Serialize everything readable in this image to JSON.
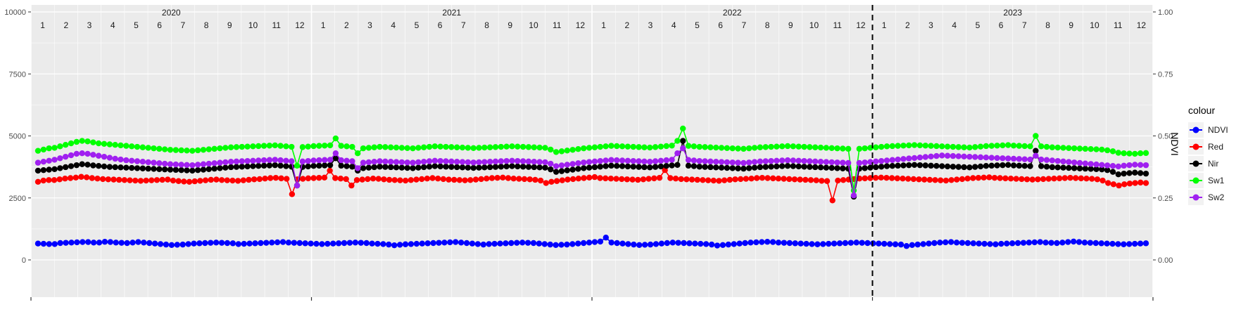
{
  "chart_data": {
    "type": "line",
    "title": "",
    "xlabel": "",
    "ylabel_left": "",
    "ylabel_right": "NDVI",
    "ylim_left": [
      0,
      10000
    ],
    "ylim_right": [
      0.0,
      1.0
    ],
    "yticks_left": [
      "0",
      "2500",
      "5000",
      "7500",
      "10000"
    ],
    "yticks_right": [
      "0.00",
      "0.25",
      "0.50",
      "0.75",
      "1.00"
    ],
    "grid": true,
    "legend_position": "right",
    "legend_title": "colour",
    "years": [
      "2020",
      "2021",
      "2022",
      "2023"
    ],
    "months": [
      "1",
      "2",
      "3",
      "4",
      "5",
      "6",
      "7",
      "8",
      "9",
      "10",
      "11",
      "12"
    ],
    "x_start": "2020-01",
    "x_end": "2023-12",
    "vline_at": "2022-12-31",
    "series": [
      {
        "name": "NDVI",
        "color": "#0000ff",
        "values": [
          660,
          650,
          640,
          640,
          680,
          690,
          700,
          710,
          720,
          720,
          700,
          700,
          730,
          720,
          700,
          690,
          680,
          700,
          720,
          700,
          680,
          660,
          640,
          620,
          600,
          610,
          620,
          640,
          660,
          670,
          680,
          690,
          700,
          690,
          680,
          670,
          640,
          650,
          660,
          670,
          680,
          690,
          700,
          710,
          720,
          700,
          690,
          680,
          670,
          660,
          650,
          640,
          650,
          660,
          670,
          680,
          690,
          700,
          690,
          680,
          660,
          650,
          640,
          620,
          590,
          610,
          630,
          640,
          650,
          660,
          670,
          680,
          690,
          700,
          710,
          720,
          700,
          680,
          660,
          640,
          620,
          640,
          650,
          660,
          670,
          680,
          690,
          700,
          690,
          680,
          660,
          640,
          620,
          600,
          610,
          620,
          640,
          660,
          680,
          700,
          720,
          740,
          900,
          700,
          680,
          660,
          640,
          620,
          600,
          610,
          620,
          640,
          660,
          680,
          700,
          690,
          680,
          670,
          660,
          650,
          640,
          620,
          580,
          600,
          620,
          640,
          660,
          680,
          700,
          710,
          720,
          730,
          720,
          700,
          690,
          680,
          670,
          660,
          650,
          640,
          630,
          640,
          650,
          660,
          670,
          680,
          690,
          700,
          690,
          680,
          670,
          660,
          650,
          640,
          630,
          620,
          560,
          600,
          620,
          640,
          660,
          680,
          700,
          710,
          720,
          700,
          690,
          680,
          670,
          660,
          650,
          640,
          630,
          650,
          660,
          670,
          680,
          690,
          700,
          710,
          720,
          700,
          690,
          680,
          700,
          720,
          740,
          720,
          700,
          690,
          680,
          670,
          660,
          650,
          640,
          630,
          640,
          650,
          660,
          670
        ]
      },
      {
        "name": "Red",
        "color": "#ff0000",
        "values": [
          3150,
          3200,
          3220,
          3220,
          3250,
          3280,
          3300,
          3320,
          3350,
          3330,
          3300,
          3280,
          3260,
          3250,
          3240,
          3230,
          3220,
          3210,
          3200,
          3190,
          3200,
          3210,
          3220,
          3230,
          3240,
          3200,
          3180,
          3160,
          3150,
          3170,
          3190,
          3210,
          3230,
          3240,
          3220,
          3210,
          3200,
          3190,
          3210,
          3230,
          3250,
          3260,
          3280,
          3300,
          3310,
          3290,
          3270,
          2650,
          3250,
          3270,
          3290,
          3300,
          3310,
          3320,
          3600,
          3300,
          3280,
          3260,
          3000,
          3220,
          3240,
          3260,
          3280,
          3270,
          3250,
          3230,
          3220,
          3210,
          3200,
          3220,
          3240,
          3260,
          3280,
          3300,
          3280,
          3260,
          3240,
          3230,
          3220,
          3210,
          3220,
          3240,
          3260,
          3280,
          3300,
          3310,
          3320,
          3300,
          3280,
          3270,
          3260,
          3250,
          3230,
          3200,
          3100,
          3150,
          3180,
          3210,
          3240,
          3260,
          3280,
          3300,
          3320,
          3340,
          3300,
          3290,
          3280,
          3270,
          3260,
          3250,
          3240,
          3230,
          3250,
          3270,
          3290,
          3310,
          3620,
          3300,
          3280,
          3260,
          3250,
          3240,
          3230,
          3220,
          3210,
          3200,
          3190,
          3210,
          3230,
          3250,
          3260,
          3270,
          3280,
          3300,
          3310,
          3300,
          3290,
          3280,
          3270,
          3260,
          3250,
          3240,
          3230,
          3220,
          3210,
          3190,
          3180,
          2400,
          3200,
          3220,
          3240,
          3260,
          3280,
          3290,
          3300,
          3310,
          3320,
          3310,
          3300,
          3290,
          3280,
          3270,
          3260,
          3250,
          3240,
          3230,
          3220,
          3210,
          3200,
          3220,
          3240,
          3260,
          3280,
          3300,
          3310,
          3320,
          3330,
          3310,
          3300,
          3290,
          3280,
          3270,
          3260,
          3250,
          3240,
          3250,
          3260,
          3270,
          3280,
          3290,
          3300,
          3310,
          3300,
          3290,
          3280,
          3270,
          3250,
          3200,
          3100,
          3050,
          3000,
          3050,
          3080,
          3100,
          3120,
          3100
        ]
      },
      {
        "name": "Nir",
        "color": "#000000",
        "values": [
          3600,
          3620,
          3640,
          3660,
          3700,
          3740,
          3780,
          3820,
          3860,
          3840,
          3810,
          3790,
          3770,
          3750,
          3740,
          3730,
          3720,
          3710,
          3700,
          3690,
          3680,
          3670,
          3660,
          3650,
          3640,
          3630,
          3620,
          3610,
          3600,
          3620,
          3640,
          3660,
          3680,
          3700,
          3720,
          3740,
          3750,
          3760,
          3770,
          3780,
          3790,
          3800,
          3810,
          3820,
          3800,
          3780,
          3760,
          3000,
          3750,
          3770,
          3790,
          3800,
          3810,
          3820,
          4100,
          3800,
          3780,
          3760,
          3600,
          3700,
          3720,
          3740,
          3760,
          3750,
          3740,
          3730,
          3720,
          3710,
          3700,
          3720,
          3740,
          3760,
          3780,
          3770,
          3760,
          3750,
          3740,
          3730,
          3720,
          3710,
          3720,
          3730,
          3740,
          3750,
          3760,
          3770,
          3780,
          3770,
          3760,
          3750,
          3740,
          3730,
          3720,
          3650,
          3550,
          3580,
          3610,
          3640,
          3670,
          3700,
          3720,
          3740,
          3760,
          3780,
          3800,
          3790,
          3780,
          3770,
          3760,
          3750,
          3740,
          3730,
          3750,
          3770,
          3790,
          3810,
          3830,
          4800,
          3800,
          3780,
          3760,
          3750,
          3740,
          3730,
          3720,
          3710,
          3700,
          3690,
          3680,
          3700,
          3720,
          3740,
          3750,
          3760,
          3770,
          3780,
          3790,
          3780,
          3770,
          3760,
          3750,
          3740,
          3730,
          3720,
          3710,
          3700,
          3690,
          3680,
          2550,
          3680,
          3700,
          3720,
          3740,
          3760,
          3780,
          3790,
          3800,
          3810,
          3820,
          3830,
          3820,
          3810,
          3800,
          3790,
          3780,
          3770,
          3760,
          3750,
          3740,
          3730,
          3750,
          3770,
          3790,
          3800,
          3810,
          3820,
          3830,
          3810,
          3800,
          3790,
          3780,
          4400,
          3780,
          3760,
          3740,
          3730,
          3720,
          3710,
          3700,
          3690,
          3680,
          3670,
          3660,
          3650,
          3620,
          3550,
          3450,
          3480,
          3500,
          3520,
          3500,
          3480
        ]
      },
      {
        "name": "Sw1",
        "color": "#00ff00",
        "values": [
          4400,
          4450,
          4500,
          4520,
          4580,
          4640,
          4700,
          4760,
          4800,
          4780,
          4740,
          4700,
          4680,
          4660,
          4640,
          4620,
          4600,
          4580,
          4560,
          4540,
          4520,
          4500,
          4480,
          4460,
          4440,
          4430,
          4420,
          4410,
          4400,
          4420,
          4440,
          4460,
          4480,
          4500,
          4520,
          4540,
          4550,
          4560,
          4570,
          4580,
          4590,
          4600,
          4610,
          4620,
          4600,
          4580,
          4560,
          3800,
          4550,
          4570,
          4590,
          4600,
          4610,
          4620,
          4900,
          4600,
          4580,
          4560,
          4300,
          4500,
          4520,
          4540,
          4560,
          4550,
          4540,
          4530,
          4520,
          4510,
          4500,
          4520,
          4540,
          4560,
          4580,
          4570,
          4560,
          4550,
          4540,
          4530,
          4520,
          4510,
          4520,
          4530,
          4540,
          4550,
          4560,
          4570,
          4580,
          4570,
          4560,
          4550,
          4540,
          4530,
          4520,
          4450,
          4350,
          4380,
          4410,
          4440,
          4470,
          4500,
          4520,
          4540,
          4560,
          4580,
          4600,
          4590,
          4580,
          4570,
          4560,
          4550,
          4540,
          4530,
          4550,
          4570,
          4590,
          4610,
          4800,
          5300,
          4600,
          4580,
          4560,
          4550,
          4540,
          4530,
          4520,
          4510,
          4500,
          4490,
          4480,
          4500,
          4520,
          4540,
          4550,
          4560,
          4570,
          4580,
          4590,
          4580,
          4570,
          4560,
          4550,
          4540,
          4530,
          4520,
          4510,
          4500,
          4490,
          4480,
          2800,
          4480,
          4500,
          4520,
          4540,
          4560,
          4580,
          4590,
          4600,
          4610,
          4620,
          4630,
          4620,
          4610,
          4600,
          4590,
          4580,
          4570,
          4560,
          4550,
          4540,
          4530,
          4550,
          4570,
          4590,
          4600,
          4610,
          4620,
          4630,
          4610,
          4600,
          4590,
          4580,
          5000,
          4580,
          4560,
          4540,
          4530,
          4520,
          4510,
          4500,
          4490,
          4480,
          4470,
          4460,
          4450,
          4420,
          4380,
          4320,
          4300,
          4290,
          4280,
          4300,
          4310
        ]
      },
      {
        "name": "Sw2",
        "color": "#a020f0",
        "values": [
          3920,
          3960,
          4000,
          4040,
          4100,
          4160,
          4220,
          4280,
          4300,
          4280,
          4240,
          4200,
          4160,
          4120,
          4080,
          4050,
          4020,
          4000,
          3980,
          3960,
          3940,
          3920,
          3900,
          3880,
          3860,
          3850,
          3840,
          3830,
          3820,
          3840,
          3860,
          3880,
          3900,
          3920,
          3940,
          3960,
          3970,
          3980,
          3990,
          4000,
          4010,
          4020,
          4030,
          4040,
          4020,
          4000,
          3980,
          3000,
          3970,
          3990,
          4010,
          4020,
          4030,
          4040,
          4300,
          4020,
          4000,
          3980,
          3700,
          3920,
          3940,
          3960,
          3980,
          3970,
          3960,
          3950,
          3940,
          3930,
          3920,
          3940,
          3960,
          3980,
          4000,
          3990,
          3980,
          3970,
          3960,
          3950,
          3940,
          3930,
          3940,
          3950,
          3960,
          3970,
          3980,
          3990,
          4000,
          3990,
          3980,
          3970,
          3960,
          3950,
          3940,
          3880,
          3780,
          3810,
          3840,
          3870,
          3900,
          3930,
          3950,
          3970,
          3990,
          4010,
          4030,
          4020,
          4010,
          4000,
          3990,
          3980,
          3970,
          3960,
          3980,
          4000,
          4020,
          4040,
          4300,
          4500,
          4030,
          4010,
          3990,
          3980,
          3970,
          3960,
          3950,
          3940,
          3930,
          3920,
          3910,
          3930,
          3950,
          3970,
          3980,
          3990,
          4000,
          4010,
          4020,
          4010,
          4000,
          3990,
          3980,
          3970,
          3960,
          3950,
          3940,
          3930,
          3920,
          3910,
          2600,
          3910,
          3930,
          3950,
          3970,
          3990,
          4010,
          4030,
          4050,
          4070,
          4090,
          4110,
          4130,
          4150,
          4170,
          4190,
          4210,
          4200,
          4190,
          4180,
          4170,
          4160,
          4150,
          4140,
          4130,
          4120,
          4110,
          4100,
          4090,
          4080,
          4070,
          4060,
          4050,
          4200,
          4050,
          4030,
          4010,
          3990,
          3970,
          3950,
          3930,
          3910,
          3890,
          3870,
          3850,
          3830,
          3810,
          3790,
          3770,
          3800,
          3820,
          3840,
          3830,
          3820
        ]
      }
    ]
  }
}
